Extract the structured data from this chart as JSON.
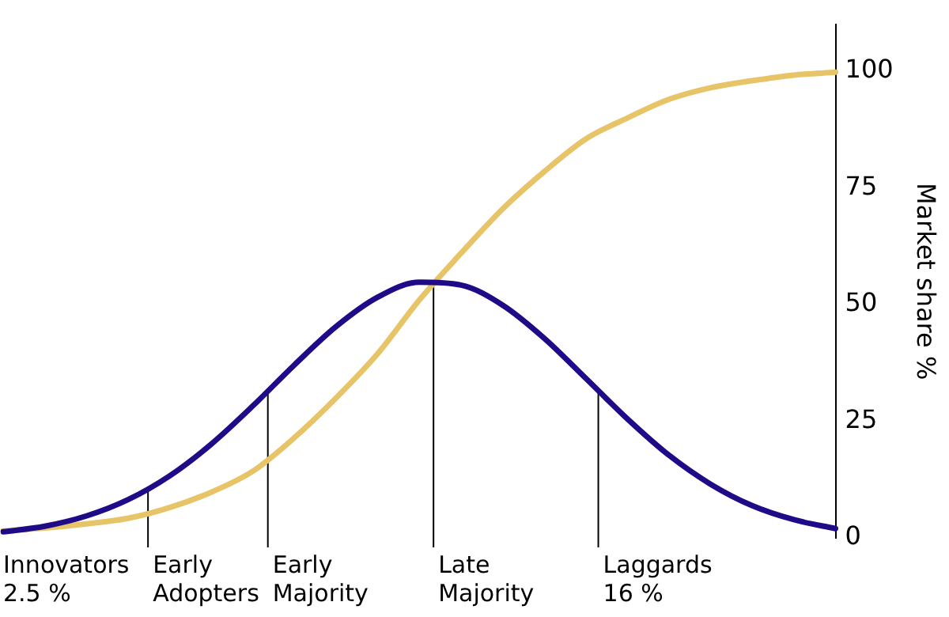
{
  "chart_data": {
    "type": "line",
    "ylabel": "Market share %",
    "categories": [
      null,
      null,
      null,
      null,
      null,
      null,
      null,
      null,
      null,
      null,
      null,
      null,
      null,
      null,
      null,
      null,
      null,
      null,
      null,
      null,
      null
    ],
    "series": [
      {
        "color": "#1f0a87",
        "values": [
          1.3,
          2.5,
          4.7,
          8.2,
          13.3,
          20.1,
          28.3,
          37.1,
          45.3,
          51.6,
          54.8,
          54.2,
          49.9,
          42.8,
          34.2,
          25.5,
          17.7,
          11.5,
          6.9,
          3.9,
          2.0
        ]
      },
      {
        "color": "#e8c468",
        "values": [
          1.5,
          2.1,
          3,
          4.2,
          6.5,
          9.8,
          14.3,
          21.5,
          30,
          39.5,
          51,
          61,
          70.5,
          78.5,
          85.5,
          90,
          94,
          96.5,
          98,
          99.2,
          99.8
        ]
      }
    ],
    "ylim": [
      0,
      110
    ],
    "yticks": [
      0,
      25,
      50,
      75,
      100
    ],
    "annotations": [
      "Innovators\n2.5 %",
      "Early\nAdopters",
      "Early\nMajority",
      "Late\nMajority",
      "Laggards\n16 %"
    ],
    "grid": false,
    "legend": false,
    "marker": "none",
    "line_style": "solid",
    "tick_labels": "y"
  }
}
